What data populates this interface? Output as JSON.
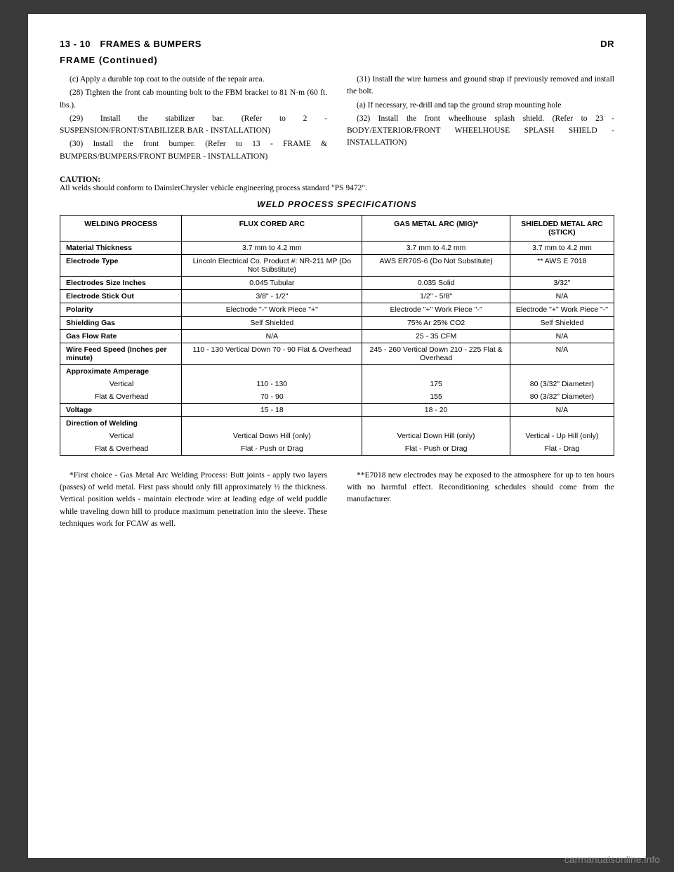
{
  "header": {
    "left": "13 - 10 FRAMES & BUMPERS",
    "right": "DR"
  },
  "continued": "FRAME (Continued)",
  "leftCol": {
    "p1": "(c) Apply a durable top coat to the outside of the repair area.",
    "p2": "(28) Tighten the front cab mounting bolt to the FBM bracket to 81 N·m (60 ft. lbs.).",
    "p3": "(29) Install the stabilizer bar. (Refer to 2 - SUSPENSION/FRONT/STABILIZER BAR - INSTALLATION)",
    "p4": "(30) Install the front bumper. (Refer to 13 - FRAME & BUMPERS/BUMPERS/FRONT BUMPER - INSTALLATION)"
  },
  "rightCol": {
    "p1": "(31) Install the wire harness and ground strap if previously removed and install the bolt.",
    "p2": "(a) If necessary, re-drill and tap the ground strap mounting hole",
    "p3": "(32) Install the front wheelhouse splash shield. (Refer to 23 - BODY/EXTERIOR/FRONT WHEELHOUSE SPLASH SHIELD - INSTALLATION)"
  },
  "caution": {
    "label": "CAUTION:",
    "text": "All welds should conform to DaimlerChrysler vehicle engineering process standard \"PS 9472\"."
  },
  "tableTitle": "WELD PROCESS SPECIFICATIONS",
  "table": {
    "headers": [
      "WELDING PROCESS",
      "FLUX CORED ARC",
      "GAS METAL ARC (MIG)*",
      "SHIELDED METAL ARC (STICK)"
    ],
    "rows": [
      {
        "label": "Material Thickness",
        "c1": "3.7 mm to 4.2 mm",
        "c2": "3.7 mm to 4.2 mm",
        "c3": "3.7 mm to 4.2 mm"
      },
      {
        "label": "Electrode Type",
        "c1": "Lincoln Electrical Co. Product #: NR-211 MP (Do Not Substitute)",
        "c2": "AWS ER70S-6 (Do Not Substitute)",
        "c3": "** AWS E 7018"
      },
      {
        "label": "Electrodes Size Inches",
        "c1": "0.045 Tubular",
        "c2": "0.035 Solid",
        "c3": "3/32\""
      },
      {
        "label": "Electrode Stick Out",
        "c1": "3/8\" - 1/2\"",
        "c2": "1/2\" - 5/8\"",
        "c3": "N/A"
      },
      {
        "label": "Polarity",
        "c1": "Electrode \"-\" Work Piece \"+\"",
        "c2": "Electrode \"+\" Work Piece \"-\"",
        "c3": "Electrode \"+\" Work Piece \"-\""
      },
      {
        "label": "Shielding Gas",
        "c1": "Self Shielded",
        "c2": "75% Ar 25% CO2",
        "c3": "Self Shielded"
      },
      {
        "label": "Gas Flow Rate",
        "c1": "N/A",
        "c2": "25 - 35 CFM",
        "c3": "N/A"
      },
      {
        "label": "Wire Feed Speed (Inches per minute)",
        "c1": "110 - 130 Vertical Down 70 - 90 Flat & Overhead",
        "c2": "245 - 260 Vertical Down 210 - 225 Flat & Overhead",
        "c3": "N/A"
      }
    ],
    "amperage": {
      "label": "Approximate Amperage",
      "vertical": {
        "label": "Vertical",
        "c1": "110 - 130",
        "c2": "175",
        "c3": "80 (3/32\" Diameter)"
      },
      "flat": {
        "label": "Flat & Overhead",
        "c1": "70 - 90",
        "c2": "155",
        "c3": "80 (3/32\" Diameter)"
      }
    },
    "voltage": {
      "label": "Voltage",
      "c1": "15 - 18",
      "c2": "18 - 20",
      "c3": "N/A"
    },
    "direction": {
      "label": "Direction of Welding",
      "vertical": {
        "label": "Vertical",
        "c1": "Vertical Down Hill (only)",
        "c2": "Vertical Down Hill (only)",
        "c3": "Vertical - Up Hill (only)"
      },
      "flat": {
        "label": "Flat & Overhead",
        "c1": "Flat - Push or Drag",
        "c2": "Flat - Push or Drag",
        "c3": "Flat - Drag"
      }
    }
  },
  "footnotes": {
    "left": "*First choice - Gas Metal Arc Welding Process: Butt joints - apply two layers (passes) of weld metal. First pass should only fill approximately ½ the thickness. Vertical position welds - maintain electrode wire at leading edge of weld puddle while traveling down hill to produce maximum penetration into the sleeve. These techniques work for FCAW as well.",
    "right": "**E7018 new electrodes may be exposed to the atmosphere for up to ten hours with no harmful effect. Reconditioning schedules should come from the manufacturer."
  },
  "watermark": "carmanualsonline.info"
}
